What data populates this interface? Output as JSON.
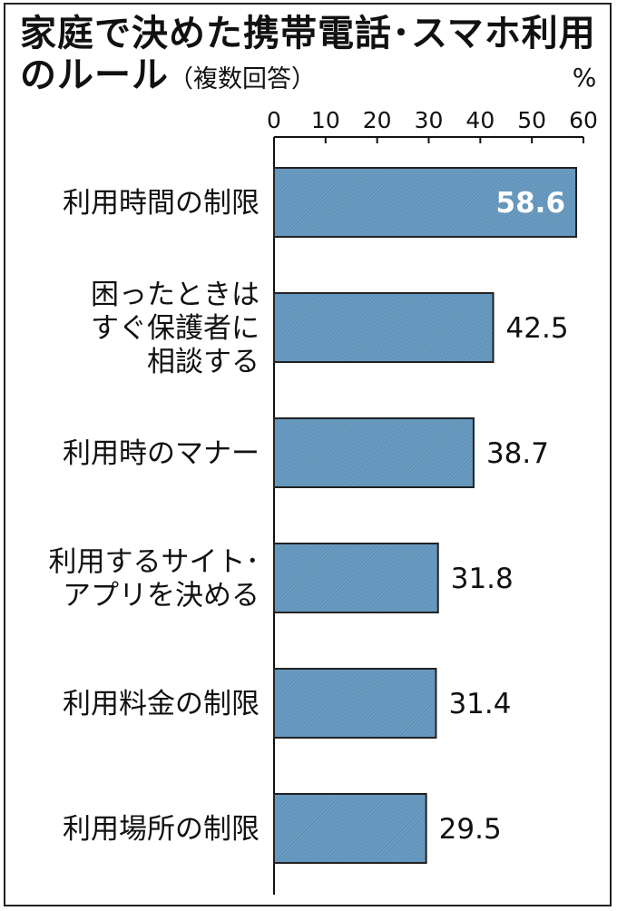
{
  "title_line1": "家庭で決めた携帯電話･スマホ利用",
  "title_line2": "のルール",
  "subtitle": "（複数回答）",
  "chart_data": {
    "type": "bar",
    "orientation": "horizontal",
    "title": "家庭で決めた携帯電話･スマホ利用のルール",
    "subtitle": "（複数回答）",
    "unit": "%",
    "xlim": [
      0,
      60
    ],
    "xticks": [
      "0",
      "10",
      "20",
      "30",
      "40",
      "50",
      "60"
    ],
    "grid": false,
    "bar_color": "#5e8fb5",
    "categories": [
      [
        "利用時間の制限"
      ],
      [
        "困ったときは",
        "すぐ保護者に",
        "相談する"
      ],
      [
        "利用時のマナー"
      ],
      [
        "利用するサイト･",
        "アプリを決める"
      ],
      [
        "利用料金の制限"
      ],
      [
        "利用場所の制限"
      ]
    ],
    "values": [
      58.6,
      42.5,
      38.7,
      31.8,
      31.4,
      29.5
    ],
    "value_labels": [
      "58.6",
      "42.5",
      "38.7",
      "31.8",
      "31.4",
      "29.5"
    ]
  }
}
